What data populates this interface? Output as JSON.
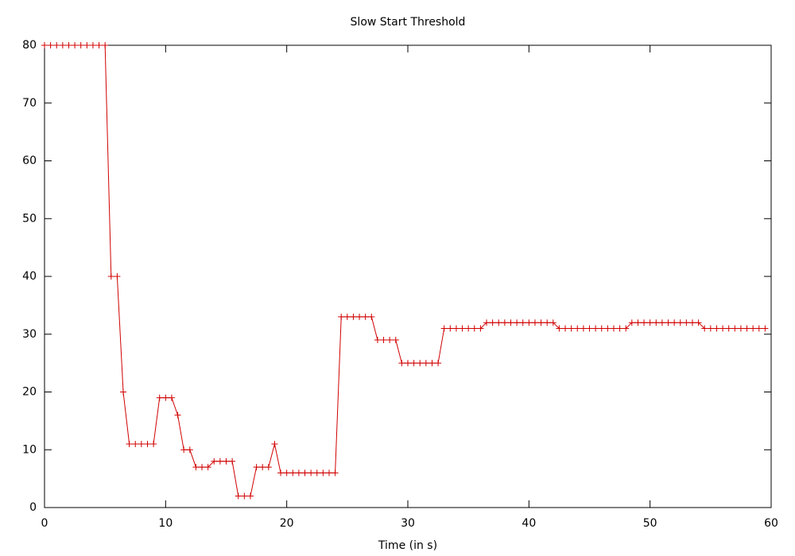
{
  "chart_data": {
    "type": "line",
    "title": "Slow Start Threshold",
    "x_label": "Time (in s)",
    "color": "#d00000",
    "marker": "+",
    "x": [
      0,
      0.5,
      1,
      1.5,
      2,
      2.5,
      3,
      3.5,
      4,
      4.5,
      5,
      5.5,
      6,
      6.5,
      7,
      7.5,
      8,
      8.5,
      9,
      9.5,
      10,
      10.5,
      11,
      11.5,
      12,
      12.5,
      13,
      13.5,
      14,
      14.5,
      15,
      15.5,
      16,
      16.5,
      17,
      17.5,
      18,
      18.5,
      19,
      19.5,
      20,
      20.5,
      21,
      21.5,
      22,
      22.5,
      23,
      23.5,
      24,
      24.5,
      25,
      25.5,
      26,
      26.5,
      27,
      27.5,
      28,
      28.5,
      29,
      29.5,
      30,
      30.5,
      31,
      31.5,
      32,
      32.5,
      33,
      33.5,
      34,
      34.5,
      35,
      35.5,
      36,
      36.5,
      37,
      37.5,
      38,
      38.5,
      39,
      39.5,
      40,
      40.5,
      41,
      41.5,
      42,
      42.5,
      43,
      43.5,
      44,
      44.5,
      45,
      45.5,
      46,
      46.5,
      47,
      47.5,
      48,
      48.5,
      49,
      49.5,
      50,
      50.5,
      51,
      51.5,
      52,
      52.5,
      53,
      53.5,
      54,
      54.5,
      55,
      55.5,
      56,
      56.5,
      57,
      57.5,
      58,
      58.5,
      59,
      59.5
    ],
    "values": [
      80,
      80,
      80,
      80,
      80,
      80,
      80,
      80,
      80,
      80,
      80,
      40,
      40,
      20,
      11,
      11,
      11,
      11,
      11,
      19,
      19,
      19,
      16,
      10,
      10,
      7,
      7,
      7,
      8,
      8,
      8,
      8,
      2,
      2,
      2,
      7,
      7,
      7,
      11,
      6,
      6,
      6,
      6,
      6,
      6,
      6,
      6,
      6,
      6,
      33,
      33,
      33,
      33,
      33,
      33,
      29,
      29,
      29,
      29,
      25,
      25,
      25,
      25,
      25,
      25,
      25,
      31,
      31,
      31,
      31,
      31,
      31,
      31,
      32,
      32,
      32,
      32,
      32,
      32,
      32,
      32,
      32,
      32,
      32,
      32,
      31,
      31,
      31,
      31,
      31,
      31,
      31,
      31,
      31,
      31,
      31,
      31,
      32,
      32,
      32,
      32,
      32,
      32,
      32,
      32,
      32,
      32,
      32,
      32,
      31,
      31,
      31,
      31,
      31,
      31,
      31,
      31,
      31,
      31,
      31
    ],
    "xlim": [
      0,
      60
    ],
    "xticks": [
      0,
      10,
      20,
      30,
      40,
      50,
      60
    ],
    "ylim": [
      0,
      80
    ],
    "yticks": [
      0,
      10,
      20,
      30,
      40,
      50,
      60,
      70,
      80
    ],
    "grid": false
  }
}
